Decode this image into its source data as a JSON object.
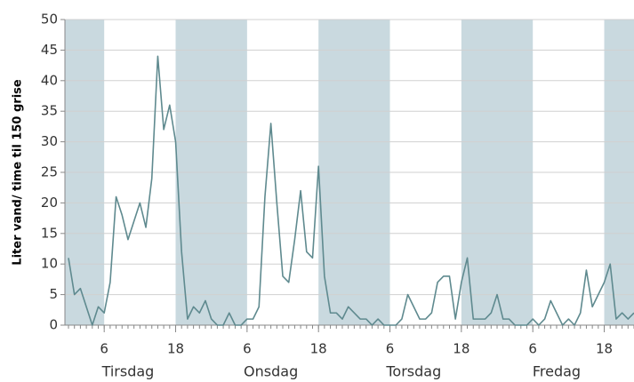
{
  "chart_data": {
    "type": "line",
    "y_label": "Liter vand/ time til 150 grise",
    "x": [
      0,
      1,
      2,
      3,
      4,
      5,
      6,
      7,
      8,
      9,
      10,
      11,
      12,
      13,
      14,
      15,
      16,
      17,
      18,
      19,
      20,
      21,
      22,
      23,
      24,
      25,
      26,
      27,
      28,
      29,
      30,
      31,
      32,
      33,
      34,
      35,
      36,
      37,
      38,
      39,
      40,
      41,
      42,
      43,
      44,
      45,
      46,
      47,
      48,
      49,
      50,
      51,
      52,
      53,
      54,
      55,
      56,
      57,
      58,
      59,
      60,
      61,
      62,
      63,
      64,
      65,
      66,
      67,
      68,
      69,
      70,
      71,
      72,
      73,
      74,
      75,
      76,
      77,
      78,
      79,
      80,
      81,
      82,
      83,
      84,
      85,
      86,
      87,
      88,
      89,
      90,
      91,
      92,
      93,
      94,
      95
    ],
    "values": [
      11,
      5,
      6,
      3,
      0,
      3,
      2,
      7,
      21,
      18,
      14,
      17,
      20,
      16,
      24,
      44,
      32,
      36,
      30,
      12,
      1,
      3,
      2,
      4,
      1,
      0,
      0,
      2,
      0,
      0,
      1,
      1,
      3,
      21,
      33,
      20,
      8,
      7,
      14,
      22,
      12,
      11,
      26,
      8,
      2,
      2,
      1,
      3,
      2,
      1,
      1,
      0,
      1,
      0,
      0,
      0,
      1,
      5,
      3,
      1,
      1,
      2,
      7,
      8,
      8,
      1,
      7,
      11,
      1,
      1,
      1,
      2,
      5,
      1,
      1,
      0,
      0,
      0,
      1,
      0,
      1,
      4,
      2,
      0,
      1,
      0,
      2,
      9,
      3,
      5,
      7,
      10,
      1,
      2,
      1,
      2
    ],
    "color": "#5f8a8f",
    "xlim": [
      -0.6,
      95
    ],
    "xticks": [
      6,
      18,
      {
        "value": 30,
        "label": "6"
      },
      {
        "value": 42,
        "label": "18"
      },
      {
        "value": 54,
        "label": "6"
      },
      {
        "value": 66,
        "label": "18"
      },
      {
        "value": 78,
        "label": "6"
      },
      {
        "value": 90,
        "label": "18"
      }
    ],
    "day_labels": [
      "Tirsdag",
      "Onsdag",
      "Torsdag",
      "Fredag"
    ],
    "shaded_periods": [
      [
        -0.6,
        6
      ],
      [
        18,
        30
      ],
      [
        42,
        54
      ],
      [
        66,
        78
      ],
      [
        90,
        95
      ]
    ],
    "shade_color": "#c9d9df",
    "ylim": [
      0,
      50
    ],
    "yticks": [
      0,
      5,
      10,
      15,
      20,
      25,
      30,
      35,
      40,
      45,
      50
    ],
    "grid": true
  }
}
